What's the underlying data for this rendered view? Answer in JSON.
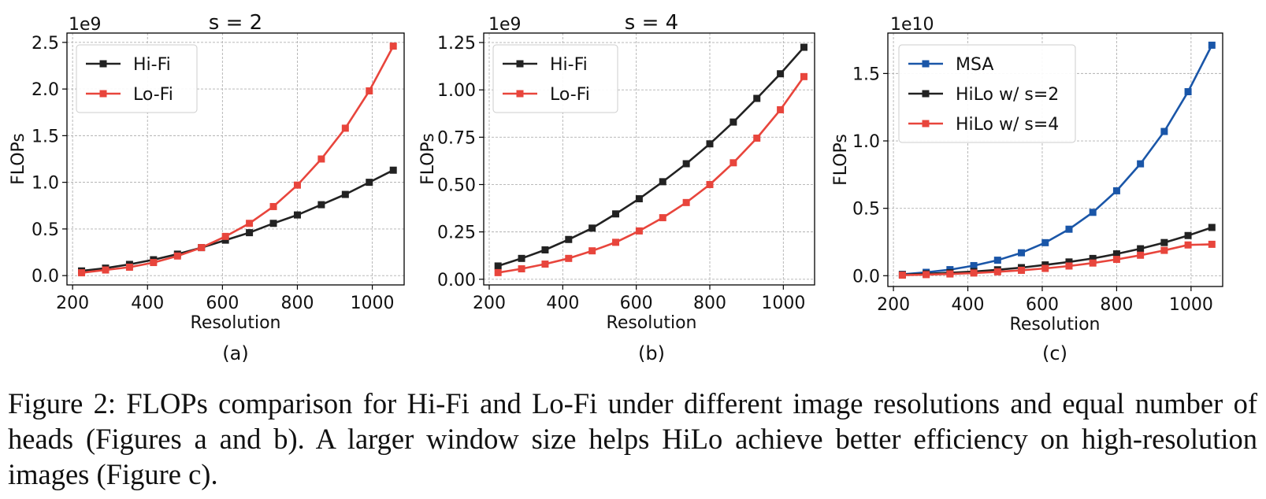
{
  "chart_data": [
    {
      "type": "line",
      "id": "a",
      "title": "s = 2",
      "xlabel": "Resolution",
      "ylabel": "FLOPs",
      "sublabel": "(a)",
      "offset_text": "1e9",
      "xlim": [
        185,
        1085
      ],
      "ylim": [
        -0.1,
        2.6
      ],
      "xticks": [
        200,
        400,
        600,
        800,
        1000
      ],
      "yticks": [
        0.0,
        0.5,
        1.0,
        1.5,
        2.0,
        2.5
      ],
      "ytick_labels": [
        "0.0",
        "0.5",
        "1.0",
        "1.5",
        "2.0",
        "2.5"
      ],
      "grid": true,
      "legend": "top-left",
      "x": [
        224,
        288,
        352,
        416,
        480,
        544,
        608,
        672,
        736,
        800,
        864,
        928,
        992,
        1056
      ],
      "series": [
        {
          "name": "Hi-Fi",
          "color": "#222222",
          "values": [
            0.05,
            0.08,
            0.12,
            0.17,
            0.23,
            0.3,
            0.38,
            0.46,
            0.56,
            0.65,
            0.76,
            0.87,
            1.0,
            1.13
          ]
        },
        {
          "name": "Lo-Fi",
          "color": "#e8453c",
          "values": [
            0.03,
            0.06,
            0.09,
            0.14,
            0.21,
            0.3,
            0.42,
            0.56,
            0.74,
            0.97,
            1.25,
            1.58,
            1.98,
            2.46
          ]
        }
      ]
    },
    {
      "type": "line",
      "id": "b",
      "title": "s = 4",
      "xlabel": "Resolution",
      "ylabel": "FLOPs",
      "sublabel": "(b)",
      "offset_text": "1e9",
      "xlim": [
        185,
        1085
      ],
      "ylim": [
        -0.03,
        1.3
      ],
      "xticks": [
        200,
        400,
        600,
        800,
        1000
      ],
      "yticks": [
        0.0,
        0.25,
        0.5,
        0.75,
        1.0,
        1.25
      ],
      "ytick_labels": [
        "0.00",
        "0.25",
        "0.50",
        "0.75",
        "1.00",
        "1.25"
      ],
      "grid": true,
      "legend": "top-left",
      "x": [
        224,
        288,
        352,
        416,
        480,
        544,
        608,
        672,
        736,
        800,
        864,
        928,
        992,
        1056
      ],
      "series": [
        {
          "name": "Hi-Fi",
          "color": "#222222",
          "values": [
            0.07,
            0.11,
            0.155,
            0.21,
            0.27,
            0.345,
            0.425,
            0.515,
            0.61,
            0.715,
            0.83,
            0.955,
            1.085,
            1.225
          ]
        },
        {
          "name": "Lo-Fi",
          "color": "#e8453c",
          "values": [
            0.035,
            0.055,
            0.08,
            0.11,
            0.15,
            0.195,
            0.255,
            0.325,
            0.405,
            0.5,
            0.615,
            0.745,
            0.895,
            1.07
          ]
        }
      ]
    },
    {
      "type": "line",
      "id": "c",
      "title": "",
      "xlabel": "Resolution",
      "ylabel": "FLOPs",
      "sublabel": "(c)",
      "offset_text": "1e10",
      "xlim": [
        185,
        1085
      ],
      "ylim": [
        -0.08,
        1.8
      ],
      "xticks": [
        200,
        400,
        600,
        800,
        1000
      ],
      "yticks": [
        0.0,
        0.5,
        1.0,
        1.5
      ],
      "ytick_labels": [
        "0.0",
        "0.5",
        "1.0",
        "1.5"
      ],
      "grid": true,
      "legend": "top-left",
      "x": [
        224,
        288,
        352,
        416,
        480,
        544,
        608,
        672,
        736,
        800,
        864,
        928,
        992,
        1056
      ],
      "series": [
        {
          "name": "MSA",
          "color": "#1a56a8",
          "values": [
            0.01,
            0.025,
            0.045,
            0.075,
            0.115,
            0.17,
            0.245,
            0.345,
            0.47,
            0.63,
            0.83,
            1.07,
            1.365,
            1.71
          ]
        },
        {
          "name": "HiLo w/ s=2",
          "color": "#222222",
          "values": [
            0.008,
            0.014,
            0.022,
            0.031,
            0.044,
            0.06,
            0.08,
            0.102,
            0.128,
            0.162,
            0.2,
            0.246,
            0.298,
            0.358
          ]
        },
        {
          "name": "HiLo w/ s=4",
          "color": "#e8453c",
          "values": [
            0.004,
            0.008,
            0.013,
            0.02,
            0.029,
            0.04,
            0.054,
            0.072,
            0.094,
            0.121,
            0.152,
            0.188,
            0.228,
            0.233
          ]
        }
      ]
    }
  ],
  "caption": "Figure 2: FLOPs comparison for Hi-Fi and Lo-Fi under different image resolutions and equal number of heads (Figures a and b). A larger window size helps HiLo achieve better efficiency on high-resolution images (Figure c)."
}
